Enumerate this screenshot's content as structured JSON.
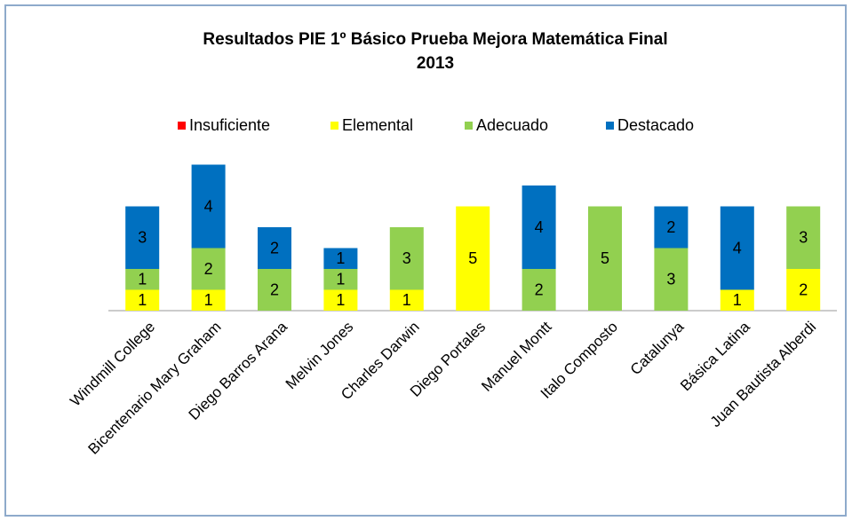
{
  "chart_data": {
    "type": "stacked-bar",
    "title": [
      "Resultados PIE 1º Básico Prueba Mejora Matemática Final",
      "2013"
    ],
    "categories": [
      "Windmill College",
      "Bicentenario Mary Graham",
      "Diego Barros Arana",
      "Melvin Jones",
      "Charles Darwin",
      "Diego Portales",
      "Manuel Montt",
      "Italo Composto",
      "Catalunya",
      "Básica Latina",
      "Juan Bautista Alberdi"
    ],
    "series": [
      {
        "name": "Insuficiente",
        "color": "#ff0000",
        "values": [
          0,
          0,
          0,
          0,
          0,
          0,
          0,
          0,
          0,
          0,
          0
        ]
      },
      {
        "name": "Elemental",
        "color": "#ffff00",
        "values": [
          1,
          1,
          0,
          1,
          1,
          5,
          0,
          0,
          0,
          1,
          2
        ]
      },
      {
        "name": "Adecuado",
        "color": "#92d050",
        "values": [
          1,
          2,
          2,
          1,
          3,
          0,
          2,
          5,
          3,
          0,
          3
        ]
      },
      {
        "name": "Destacado",
        "color": "#0070c0",
        "values": [
          3,
          4,
          2,
          1,
          0,
          0,
          4,
          0,
          2,
          4,
          0
        ]
      }
    ],
    "legend": "top"
  }
}
